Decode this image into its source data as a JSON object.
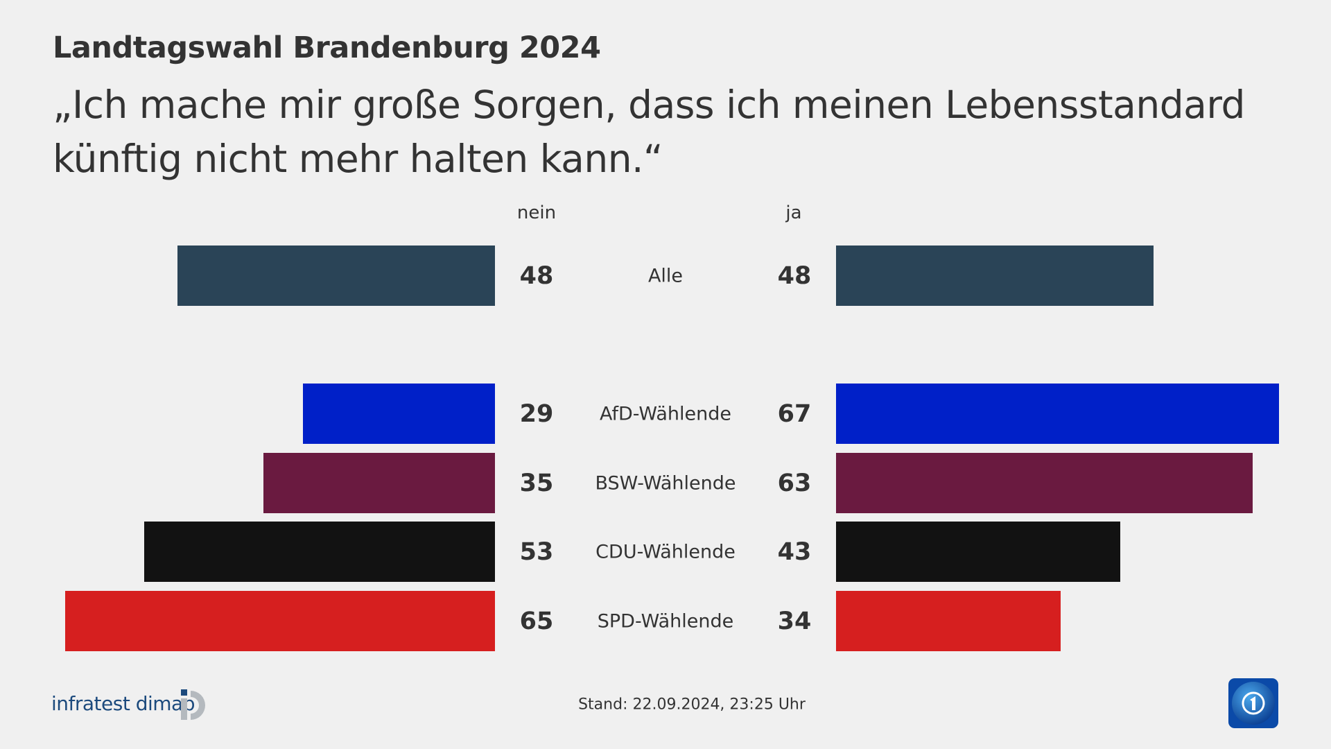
{
  "header": {
    "title": "Landtagswahl Brandenburg 2024",
    "subtitle": "„Ich mache mir große Sorgen, dass ich meinen Lebensstandard künftig nicht mehr halten kann.“"
  },
  "chart_data": {
    "type": "bar",
    "orientation": "diverging-horizontal",
    "categories": [
      "Alle",
      "AfD-Wählende",
      "BSW-Wählende",
      "CDU-Wählende",
      "SPD-Wählende"
    ],
    "series": [
      {
        "name": "nein",
        "values": [
          48,
          29,
          35,
          53,
          65
        ]
      },
      {
        "name": "ja",
        "values": [
          48,
          67,
          63,
          43,
          34
        ]
      }
    ],
    "colors": [
      "#2a4457",
      "#0020c8",
      "#6a1a40",
      "#121212",
      "#d61f1f"
    ],
    "unit": "%"
  },
  "footer": {
    "stand": "Stand:  22.09.2024, 23:25 Uhr",
    "source_logo": "infratest dimap",
    "broadcaster_logo": "tagesschau-icon"
  }
}
